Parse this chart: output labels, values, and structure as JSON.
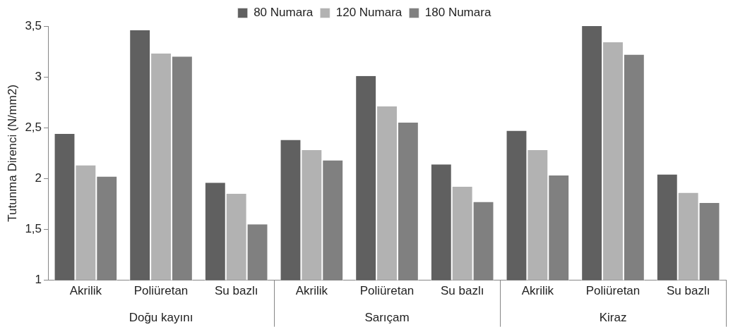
{
  "chart_data": {
    "type": "bar",
    "ylabel": "Tutunma Direnci (N/mm2)",
    "categories": [
      "Akrilik",
      "Poliüretan",
      "Su bazlı",
      "Akrilik",
      "Poliüretan",
      "Su bazlı",
      "Akrilik",
      "Poliüretan",
      "Su bazlı"
    ],
    "annotations": [
      "Doğu kayını",
      "Sarıçam",
      "Kiraz"
    ],
    "series": [
      {
        "name": "80 Numara",
        "color": "#606060",
        "values": [
          2.44,
          3.46,
          1.96,
          2.38,
          3.01,
          2.14,
          2.47,
          3.5,
          2.04
        ]
      },
      {
        "name": "120 Numara",
        "color": "#b2b2b2",
        "values": [
          2.13,
          3.23,
          1.85,
          2.28,
          2.71,
          1.92,
          2.28,
          3.34,
          1.86
        ]
      },
      {
        "name": "180 Numara",
        "color": "#808080",
        "values": [
          2.02,
          3.2,
          1.55,
          2.18,
          2.55,
          1.77,
          2.03,
          3.22,
          1.76
        ]
      }
    ],
    "ylim": [
      1,
      3.5
    ],
    "yticks": [
      1,
      {
        "value": 1.5,
        "label": "1,5"
      },
      2,
      {
        "value": 2.5,
        "label": "2,5"
      },
      3,
      {
        "value": 3.5,
        "label": "3,5"
      }
    ],
    "legend": "top"
  }
}
